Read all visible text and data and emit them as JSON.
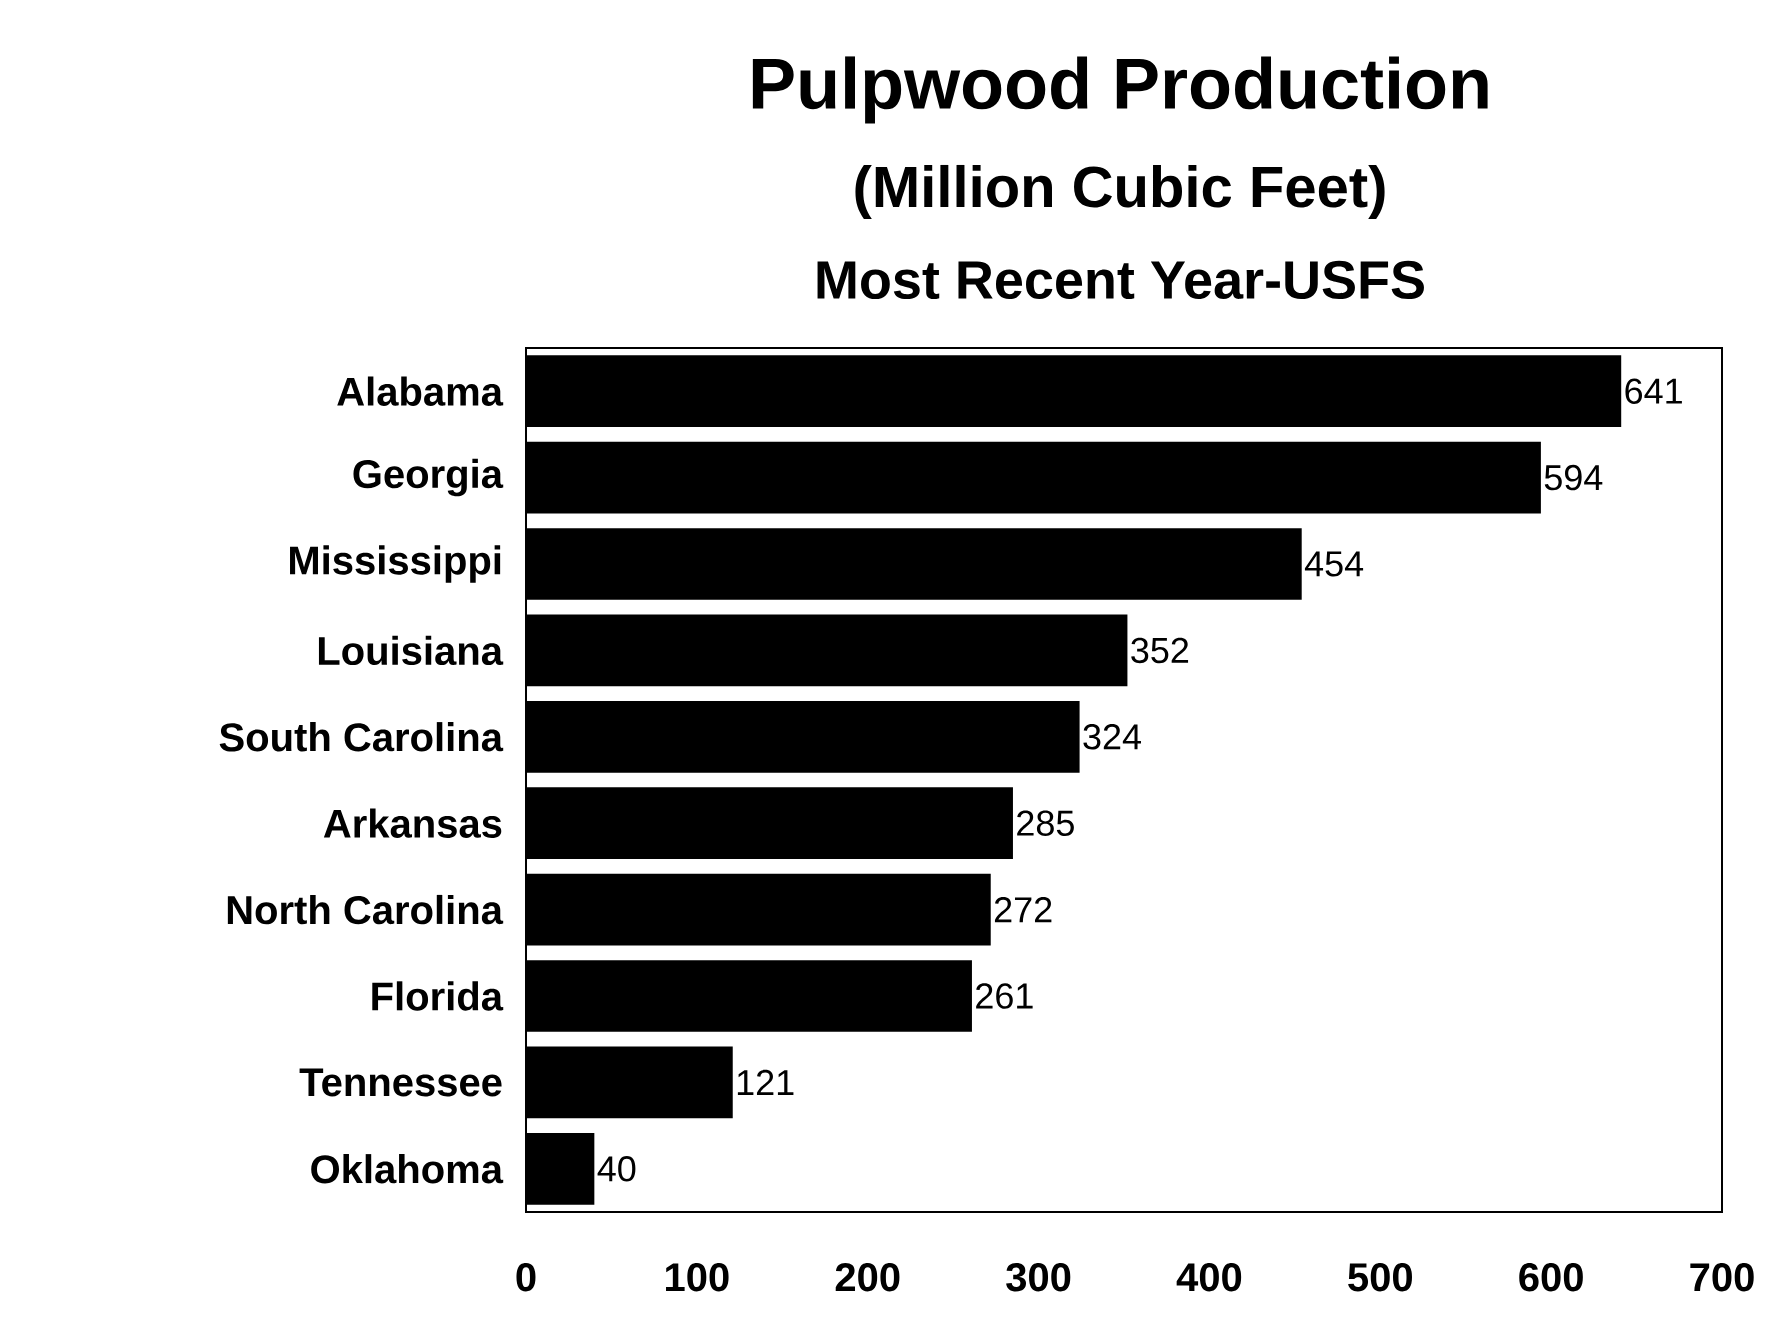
{
  "chart_data": {
    "type": "bar",
    "orientation": "horizontal",
    "title": "Pulpwood Production",
    "subtitle": "(Million Cubic Feet)",
    "annotations": [
      "Most Recent Year-USFS"
    ],
    "categories": [
      "Alabama",
      "Georgia",
      "Mississippi",
      "Louisiana",
      "South Carolina",
      "Arkansas",
      "North Carolina",
      "Florida",
      "Tennessee",
      "Oklahoma"
    ],
    "values": [
      641,
      594,
      454,
      352,
      324,
      285,
      272,
      261,
      121,
      40
    ],
    "color": "#000000",
    "data_labels": true,
    "xlim": [
      0,
      700
    ],
    "xticks": [
      0,
      100,
      200,
      300,
      400,
      500,
      600,
      700
    ]
  }
}
